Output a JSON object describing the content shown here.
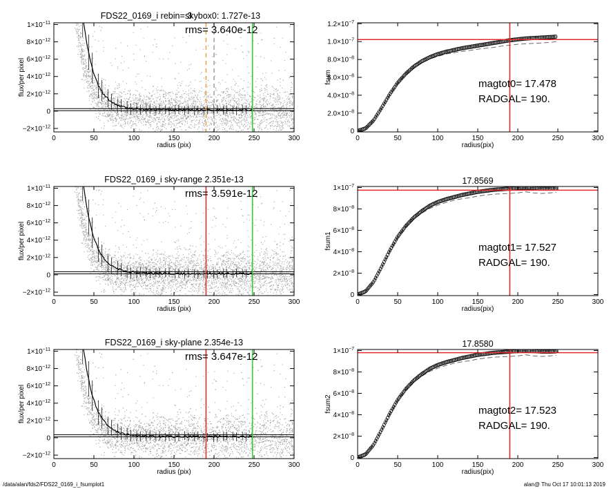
{
  "footer": {
    "path": "/data/alan/fds2/FDS22_0169_i_fsumplot1",
    "stamp": "alan@  Thu Oct 17 10:01:13 2019"
  },
  "colors": {
    "red": "#e32a2a",
    "green": "#2fd02f",
    "orange": "#f0952d",
    "points": "#a6a6a6",
    "profile": "#000000"
  },
  "chart_data": [
    {
      "id": "flux0",
      "type": "scatter",
      "title": "FDS22_0169_i rebin= 3",
      "title_extra": "skybox0:  1.727e-13",
      "annotation": "rms= 3.640e-12",
      "xlabel": "radius (pix)",
      "ylabel": "flux/per pixel",
      "xlim": [
        0,
        300
      ],
      "ylim": [
        -2.4e-12,
        1.02e-11
      ],
      "xticks": [
        "0",
        "50",
        "100",
        "150",
        "200",
        "250",
        "300"
      ],
      "yticks": [
        {
          "v": -2e-12,
          "m": "−2×10",
          "e": "−12"
        },
        {
          "v": 0,
          "m": "0",
          "e": ""
        },
        {
          "v": 2e-12,
          "m": "2×10",
          "e": "−12"
        },
        {
          "v": 4e-12,
          "m": "4×10",
          "e": "−12"
        },
        {
          "v": 6e-12,
          "m": "6×10",
          "e": "−12"
        },
        {
          "v": 8e-12,
          "m": "8×10",
          "e": "−12"
        },
        {
          "v": 1e-11,
          "m": "1×10",
          "e": "−11"
        }
      ],
      "sky_level": 1.727e-13,
      "vlines": [
        {
          "x": 190,
          "color": "orange",
          "dash": true
        },
        {
          "x": 200,
          "color": "grey",
          "dash": true
        },
        {
          "x": 248,
          "color": "green",
          "dash": false
        }
      ]
    },
    {
      "id": "fsum0",
      "type": "line",
      "title": "",
      "annotation_lines": [
        "magtot0=  17.478",
        "RADGAL=    190."
      ],
      "xlabel": "radius(pix)",
      "ylabel": "fsum",
      "xlim": [
        0,
        300
      ],
      "ylim": [
        -1e-09,
        1.21e-07
      ],
      "xticks": [
        "0",
        "50",
        "100",
        "150",
        "200",
        "250",
        "300"
      ],
      "yticks": [
        {
          "v": 0,
          "m": "0",
          "e": ""
        },
        {
          "v": 2e-08,
          "m": "2.0×10",
          "e": "−8"
        },
        {
          "v": 4e-08,
          "m": "4.0×10",
          "e": "−8"
        },
        {
          "v": 6e-08,
          "m": "6.0×10",
          "e": "−8"
        },
        {
          "v": 8e-08,
          "m": "8.0×10",
          "e": "−8"
        },
        {
          "v": 1e-07,
          "m": "1.0×10",
          "e": "−7"
        },
        {
          "v": 1.2e-07,
          "m": "1.2×10",
          "e": "−7"
        }
      ],
      "radgal": 190,
      "hline": 1.023e-07,
      "curve": {
        "x": [
          0,
          10,
          20,
          30,
          40,
          50,
          60,
          70,
          80,
          90,
          100,
          110,
          120,
          130,
          140,
          150,
          160,
          170,
          180,
          190,
          200,
          210,
          220,
          230,
          240,
          248
        ],
        "y": [
          0,
          3e-09,
          1.2e-08,
          2.6e-08,
          4.1e-08,
          5.4e-08,
          6.4e-08,
          7.2e-08,
          7.8e-08,
          8.25e-08,
          8.6e-08,
          8.85e-08,
          9.05e-08,
          9.25e-08,
          9.4e-08,
          9.55e-08,
          9.7e-08,
          9.85e-08,
          1e-07,
          1.015e-07,
          1.025e-07,
          1.035e-07,
          1.04e-07,
          1.045e-07,
          1.05e-07,
          1.055e-07
        ]
      },
      "lower": {
        "x": [
          0,
          10,
          20,
          30,
          40,
          50,
          60,
          70,
          80,
          90,
          100,
          110,
          120,
          130,
          140,
          150,
          160,
          170,
          180,
          190,
          200,
          210,
          220,
          230,
          240,
          248
        ],
        "y": [
          0,
          3e-09,
          1.2e-08,
          2.55e-08,
          4e-08,
          5.3e-08,
          6.3e-08,
          7.05e-08,
          7.6e-08,
          8.05e-08,
          8.35e-08,
          8.6e-08,
          8.75e-08,
          8.9e-08,
          9e-08,
          9.15e-08,
          9.25e-08,
          9.35e-08,
          9.5e-08,
          9.6e-08,
          9.7e-08,
          9.75e-08,
          9.8e-08,
          9.85e-08,
          9.9e-08,
          1e-07
        ]
      }
    },
    {
      "id": "flux1",
      "type": "scatter",
      "title": "FDS22_0169_i sky-range  2.351e-13",
      "annotation": "rms= 3.591e-12",
      "xlabel": "radius (pix)",
      "ylabel": "flux/per pixel",
      "xlim": [
        0,
        300
      ],
      "ylim": [
        -2.4e-12,
        1.02e-11
      ],
      "xticks": [
        "0",
        "50",
        "100",
        "150",
        "200",
        "250",
        "300"
      ],
      "yticks": [
        {
          "v": -2e-12,
          "m": "−2×10",
          "e": "−12"
        },
        {
          "v": 0,
          "m": "0",
          "e": ""
        },
        {
          "v": 2e-12,
          "m": "2×10",
          "e": "−12"
        },
        {
          "v": 4e-12,
          "m": "4×10",
          "e": "−12"
        },
        {
          "v": 6e-12,
          "m": "6×10",
          "e": "−12"
        },
        {
          "v": 8e-12,
          "m": "8×10",
          "e": "−12"
        },
        {
          "v": 1e-11,
          "m": "1×10",
          "e": "−11"
        }
      ],
      "sky_level": 2.351e-13,
      "vlines": [
        {
          "x": 190,
          "color": "red",
          "dash": false
        },
        {
          "x": 248,
          "color": "green",
          "dash": false
        }
      ]
    },
    {
      "id": "fsum1",
      "type": "line",
      "title": "17.8569",
      "annotation_lines": [
        "magtot1=  17.527",
        "RADGAL=    190."
      ],
      "xlabel": "radius(pix)",
      "ylabel": "fsum1",
      "xlim": [
        0,
        300
      ],
      "ylim": [
        -1e-09,
        1.01e-07
      ],
      "xticks": [
        "0",
        "50",
        "100",
        "150",
        "200",
        "250",
        "300"
      ],
      "yticks": [
        {
          "v": 0,
          "m": "0",
          "e": ""
        },
        {
          "v": 2e-08,
          "m": "2×10",
          "e": "−8"
        },
        {
          "v": 4e-08,
          "m": "4×10",
          "e": "−8"
        },
        {
          "v": 6e-08,
          "m": "6×10",
          "e": "−8"
        },
        {
          "v": 8e-08,
          "m": "8×10",
          "e": "−8"
        },
        {
          "v": 1e-07,
          "m": "1×10",
          "e": "−7"
        }
      ],
      "radgal": 190,
      "hline": 9.75e-08,
      "curve": {
        "x": [
          0,
          10,
          20,
          30,
          40,
          50,
          60,
          70,
          80,
          90,
          100,
          110,
          120,
          130,
          140,
          150,
          160,
          170,
          180,
          190,
          200,
          210,
          220,
          230,
          240,
          248
        ],
        "y": [
          0,
          3e-09,
          1.2e-08,
          2.6e-08,
          4.1e-08,
          5.4e-08,
          6.4e-08,
          7.2e-08,
          7.8e-08,
          8.3e-08,
          8.65e-08,
          8.9e-08,
          9.1e-08,
          9.3e-08,
          9.45e-08,
          9.6e-08,
          9.7e-08,
          9.8e-08,
          9.85e-08,
          9.9e-08,
          9.95e-08,
          1e-07,
          9.95e-08,
          9.9e-08,
          9.9e-08,
          9.92e-08
        ]
      },
      "lower": {
        "x": [
          0,
          10,
          20,
          30,
          40,
          50,
          60,
          70,
          80,
          90,
          100,
          110,
          120,
          130,
          140,
          150,
          160,
          170,
          180,
          190,
          200,
          210,
          220,
          230,
          240,
          248
        ],
        "y": [
          0,
          3e-09,
          1.2e-08,
          2.55e-08,
          4e-08,
          5.3e-08,
          6.3e-08,
          7.05e-08,
          7.6e-08,
          8.05e-08,
          8.35e-08,
          8.6e-08,
          8.8e-08,
          8.95e-08,
          9.05e-08,
          9.2e-08,
          9.3e-08,
          9.38e-08,
          9.42e-08,
          9.45e-08,
          9.5e-08,
          9.6e-08,
          9.5e-08,
          9.45e-08,
          9.5e-08,
          9.55e-08
        ]
      }
    },
    {
      "id": "flux2",
      "type": "scatter",
      "title": "FDS22_0169_i sky-plane  2.354e-13",
      "annotation": "rms= 3.647e-12",
      "xlabel": "radius (pix)",
      "ylabel": "flux/per pixel",
      "xlim": [
        0,
        300
      ],
      "ylim": [
        -2.4e-12,
        1.02e-11
      ],
      "xticks": [
        "0",
        "50",
        "100",
        "150",
        "200",
        "250",
        "300"
      ],
      "yticks": [
        {
          "v": -2e-12,
          "m": "−2×10",
          "e": "−12"
        },
        {
          "v": 0,
          "m": "0",
          "e": ""
        },
        {
          "v": 2e-12,
          "m": "2×10",
          "e": "−12"
        },
        {
          "v": 4e-12,
          "m": "4×10",
          "e": "−12"
        },
        {
          "v": 6e-12,
          "m": "6×10",
          "e": "−12"
        },
        {
          "v": 8e-12,
          "m": "8×10",
          "e": "−12"
        },
        {
          "v": 1e-11,
          "m": "1×10",
          "e": "−11"
        }
      ],
      "sky_level": 2.354e-13,
      "vlines": [
        {
          "x": 190,
          "color": "red",
          "dash": false
        },
        {
          "x": 248,
          "color": "green",
          "dash": false
        }
      ]
    },
    {
      "id": "fsum2",
      "type": "line",
      "title": "17.8580",
      "annotation_lines": [
        "magtot2=  17.523",
        "RADGAL=    190."
      ],
      "xlabel": "radius(pix)",
      "ylabel": "fsum2",
      "xlim": [
        0,
        300
      ],
      "ylim": [
        -1e-09,
        1.01e-07
      ],
      "xticks": [
        "0",
        "50",
        "100",
        "150",
        "200",
        "250",
        "300"
      ],
      "yticks": [
        {
          "v": 0,
          "m": "0",
          "e": ""
        },
        {
          "v": 2e-08,
          "m": "2×10",
          "e": "−8"
        },
        {
          "v": 4e-08,
          "m": "4×10",
          "e": "−8"
        },
        {
          "v": 6e-08,
          "m": "6×10",
          "e": "−8"
        },
        {
          "v": 8e-08,
          "m": "8×10",
          "e": "−8"
        },
        {
          "v": 1e-07,
          "m": "1×10",
          "e": "−7"
        }
      ],
      "radgal": 190,
      "hline": 9.8e-08,
      "curve": {
        "x": [
          0,
          10,
          20,
          30,
          40,
          50,
          60,
          70,
          80,
          90,
          100,
          110,
          120,
          130,
          140,
          150,
          160,
          170,
          180,
          190,
          200,
          210,
          220,
          230,
          240,
          248
        ],
        "y": [
          0,
          3e-09,
          1.2e-08,
          2.6e-08,
          4.1e-08,
          5.4e-08,
          6.4e-08,
          7.2e-08,
          7.8e-08,
          8.3e-08,
          8.65e-08,
          8.9e-08,
          9.1e-08,
          9.3e-08,
          9.45e-08,
          9.6e-08,
          9.7e-08,
          9.8e-08,
          9.85e-08,
          9.9e-08,
          9.95e-08,
          1e-07,
          9.95e-08,
          9.9e-08,
          9.9e-08,
          9.92e-08
        ]
      },
      "lower": {
        "x": [
          0,
          10,
          20,
          30,
          40,
          50,
          60,
          70,
          80,
          90,
          100,
          110,
          120,
          130,
          140,
          150,
          160,
          170,
          180,
          190,
          200,
          210,
          220,
          230,
          240,
          248
        ],
        "y": [
          0,
          3e-09,
          1.2e-08,
          2.55e-08,
          4e-08,
          5.3e-08,
          6.3e-08,
          7.05e-08,
          7.6e-08,
          8.05e-08,
          8.35e-08,
          8.6e-08,
          8.8e-08,
          8.95e-08,
          9.05e-08,
          9.2e-08,
          9.3e-08,
          9.38e-08,
          9.42e-08,
          9.45e-08,
          9.5e-08,
          9.6e-08,
          9.5e-08,
          9.45e-08,
          9.5e-08,
          9.55e-08
        ]
      }
    }
  ]
}
